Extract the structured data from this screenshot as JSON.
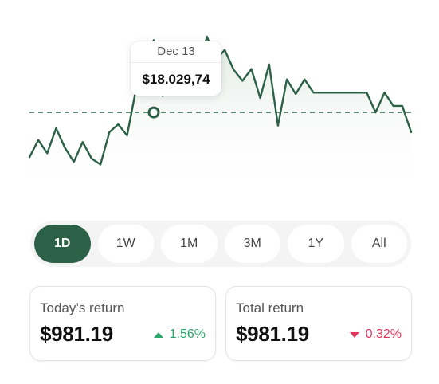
{
  "chart_data": {
    "type": "area",
    "x": [
      0,
      1,
      2,
      3,
      4,
      5,
      6,
      7,
      8,
      9,
      10,
      11,
      12,
      13,
      14,
      15,
      16,
      17,
      18,
      19,
      20,
      21,
      22,
      23,
      24,
      25,
      26,
      27,
      28,
      29,
      30,
      31,
      32,
      33,
      34,
      35,
      36,
      37,
      38,
      39,
      40,
      41,
      42,
      43
    ],
    "values": [
      42,
      68,
      48,
      86,
      56,
      35,
      65,
      40,
      31,
      80,
      92,
      75,
      145,
      163,
      220,
      135,
      183,
      210,
      155,
      178,
      225,
      190,
      205,
      175,
      158,
      176,
      132,
      183,
      90,
      160,
      138,
      160,
      140,
      140,
      140,
      140,
      140,
      140,
      140,
      110,
      140,
      120,
      120,
      80
    ],
    "reference_value": 110,
    "ylim": [
      0,
      230
    ],
    "selected_index": 14,
    "colors": {
      "line": "#2c6147",
      "area_top": "#dfe9e2",
      "reference": "#2c6147"
    }
  },
  "tooltip": {
    "date": "Dec 13",
    "value": "$18.029,74"
  },
  "ranges": {
    "items": [
      "1D",
      "1W",
      "1M",
      "3M",
      "1Y",
      "All"
    ],
    "selected": "1D"
  },
  "cards": {
    "today": {
      "label": "Today’s return",
      "amount": "$981.19",
      "change": "1.56%",
      "direction": "up",
      "color": "#2ba66b"
    },
    "total": {
      "label": "Total return",
      "amount": "$981.19",
      "change": "0.32%",
      "direction": "down",
      "color": "#e4345a"
    }
  }
}
